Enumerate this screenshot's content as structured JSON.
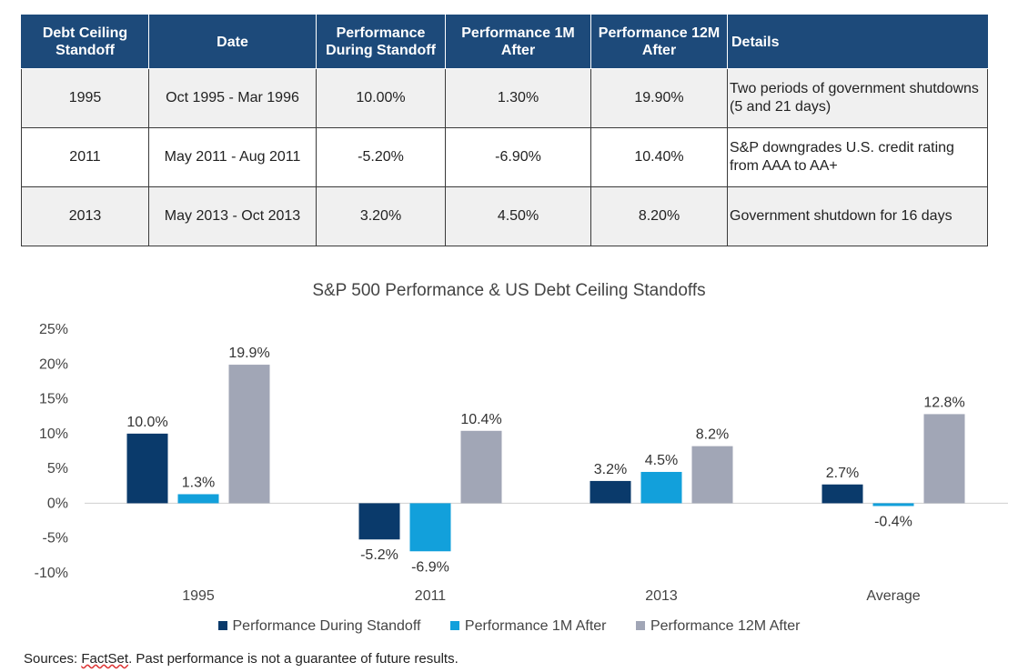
{
  "table": {
    "headers": [
      "Debt Ceiling Standoff",
      "Date",
      "Performance During Standoff",
      "Performance 1M After",
      "Performance 12M After",
      "Details"
    ],
    "rows": [
      [
        "1995",
        "Oct 1995 - Mar 1996",
        "10.00%",
        "1.30%",
        "19.90%",
        "Two periods of government shutdowns (5 and 21 days)"
      ],
      [
        "2011",
        "May 2011 - Aug 2011",
        "-5.20%",
        "-6.90%",
        "10.40%",
        "S&P downgrades U.S. credit rating from AAA to AA+"
      ],
      [
        "2013",
        "May 2013 - Oct 2013",
        "3.20%",
        "4.50%",
        "8.20%",
        "Government shutdown for 16 days"
      ]
    ],
    "header_color": "#1d4a7a"
  },
  "chart_data": {
    "type": "bar",
    "title": "S&P 500 Performance & US Debt Ceiling Standoffs",
    "categories": [
      "1995",
      "2011",
      "2013",
      "Average"
    ],
    "series": [
      {
        "name": "Performance During Standoff",
        "values": [
          10.0,
          -5.2,
          3.2,
          2.7
        ],
        "labels": [
          "10.0%",
          "-5.2%",
          "3.2%",
          "2.7%"
        ],
        "color": "#0a3a6b"
      },
      {
        "name": "Performance 1M After",
        "values": [
          1.3,
          -6.9,
          4.5,
          -0.4
        ],
        "labels": [
          "1.3%",
          "-6.9%",
          "4.5%",
          "-0.4%"
        ],
        "color": "#12a0db"
      },
      {
        "name": "Performance 12M After",
        "values": [
          19.9,
          10.4,
          8.2,
          12.8
        ],
        "labels": [
          "19.9%",
          "10.4%",
          "8.2%",
          "12.8%"
        ],
        "color": "#a1a6b6"
      }
    ],
    "y_ticks": [
      "25%",
      "20%",
      "15%",
      "10%",
      "5%",
      "0%",
      "-5%",
      "-10%"
    ],
    "ylim": [
      -10,
      25
    ],
    "grid": false,
    "legend": "bottom"
  },
  "footer": {
    "prefix": "Sources: ",
    "source_name": "FactSet",
    "suffix": ". Past performance is not a guarantee of future results."
  }
}
